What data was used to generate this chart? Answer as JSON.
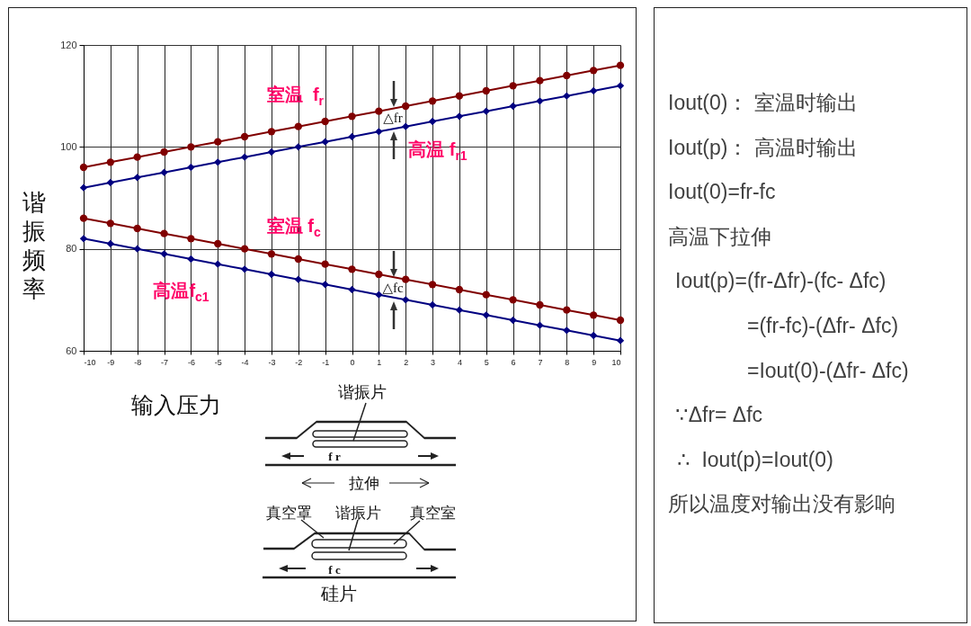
{
  "chart_data": [
    {
      "type": "line",
      "xlabel": "输入压力",
      "ylabel": "谐振频率",
      "x": [
        -10,
        -9,
        -8,
        -7,
        -6,
        -5,
        -4,
        -3,
        -2,
        -1,
        0,
        1,
        2,
        3,
        4,
        5,
        6,
        7,
        8,
        9,
        10
      ],
      "series": [
        {
          "name": "室温  f$_{r}$",
          "color": "#800000",
          "marker": "circle",
          "values": [
            96,
            97,
            98,
            99,
            100,
            101,
            102,
            103,
            104,
            105,
            106,
            107,
            108,
            109,
            110,
            111,
            112,
            113,
            114,
            115,
            116
          ]
        },
        {
          "name": "高温 f$_{r1}$",
          "color": "#000080",
          "marker": "diamond",
          "values": [
            92,
            93,
            94,
            95,
            96,
            97,
            98,
            99,
            100,
            101,
            102,
            103,
            104,
            105,
            106,
            107,
            108,
            109,
            110,
            111,
            112
          ]
        },
        {
          "name": "室温 f$_{c}$",
          "color": "#800000",
          "marker": "circle",
          "values": [
            86,
            85,
            84,
            83,
            82,
            81,
            80,
            79,
            78,
            77,
            76,
            75,
            74,
            73,
            72,
            71,
            70,
            69,
            68,
            67,
            66
          ]
        },
        {
          "name": "高温f$_{c1}$",
          "color": "#000080",
          "marker": "diamond",
          "values": [
            82,
            81,
            80,
            79,
            78,
            77,
            76,
            75,
            74,
            73,
            72,
            71,
            70,
            69,
            68,
            67,
            66,
            65,
            64,
            63,
            62
          ]
        }
      ],
      "xlim": [
        -10,
        10
      ],
      "ylim": [
        60,
        120
      ],
      "xticks": [
        -10,
        -9,
        -8,
        -7,
        -6,
        -5,
        -4,
        -3,
        -2,
        -1,
        0,
        1,
        2,
        3,
        4,
        5,
        6,
        7,
        8,
        9,
        10
      ],
      "yticks": [
        60,
        80,
        100,
        120
      ],
      "grid": true,
      "line_style": "solid",
      "annotations": [
        "△fr",
        "△fc",
        "谐振片",
        "f r",
        "拉伸",
        "真空罩",
        "谐振片",
        "真空室",
        "f c",
        "硅片"
      ]
    },
    {
      "type": "other",
      "annotations": [
        "Iout(0)： 室温时输出",
        "Iout(p)： 高温时输出",
        "Iout(0)=fr-fc",
        "高温下拉伸",
        "Iout(p)=(fr-Δfr)-(fc- Δfc)",
        "=(fr-fc)-(Δfr- Δfc)",
        "=Iout(0)-(Δfr- Δfc)",
        "∵Δfr= Δfc",
        "∴  Iout(p)=Iout(0)",
        "所以温度对输出没有影响"
      ]
    }
  ]
}
